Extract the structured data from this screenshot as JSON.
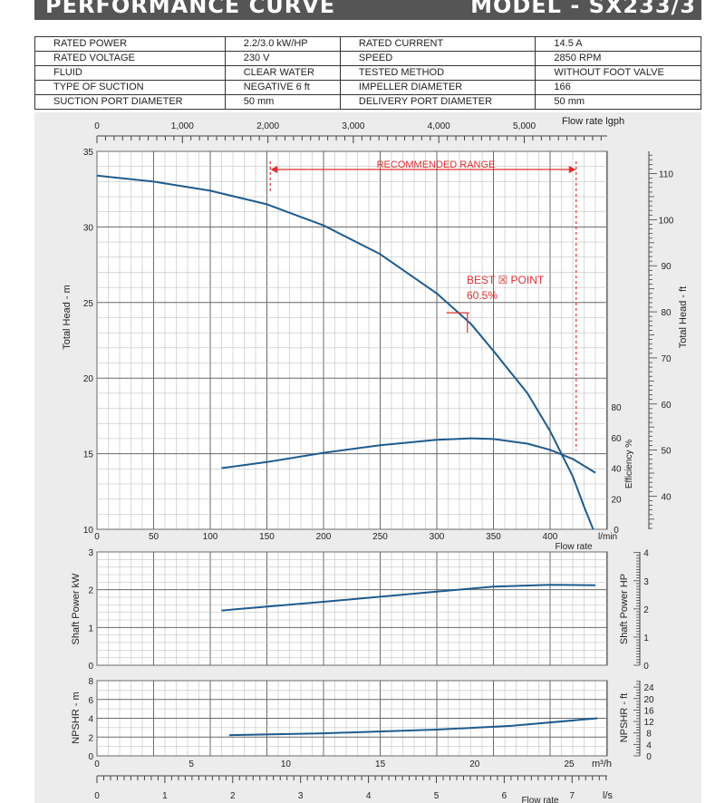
{
  "header": {
    "title": "PERFORMANCE  CURVE",
    "model": "MODEL - SX233/3"
  },
  "specs": [
    [
      "RATED POWER",
      "2.2/3.0  kW/HP",
      "RATED CURRENT",
      "14.5  A"
    ],
    [
      "RATED VOLTAGE",
      "230 V",
      "SPEED",
      "2850 RPM"
    ],
    [
      "FLUID",
      "CLEAR WATER",
      "TESTED  METHOD",
      "WITHOUT FOOT VALVE"
    ],
    [
      "TYPE OF SUCTION",
      "NEGATIVE  6 ft",
      "IMPELLER DIAMETER",
      "166"
    ],
    [
      "SUCTION PORT DIAMETER",
      "50 mm",
      "DELIVERY PORT DIAMETER",
      "50 mm"
    ]
  ],
  "colors": {
    "curve": "#1f5b8e",
    "annotation": "#e03030",
    "grid": "#8a8a8a",
    "panel": "#ececec",
    "banner": "#555555"
  },
  "chart_data": [
    {
      "type": "line",
      "name": "head-efficiency",
      "x_unit": "l/min",
      "xlim": [
        0,
        450
      ],
      "ylabel": "Total Head - m",
      "ylim": [
        10,
        35
      ],
      "y_right_label": "Total Head - ft",
      "y_right_ticks": [
        40,
        50,
        60,
        70,
        80,
        90,
        100,
        110
      ],
      "efficiency_label": "Efficiency %",
      "efficiency_ticks": [
        0,
        20,
        40,
        60,
        80
      ],
      "series": [
        {
          "name": "Total Head - m",
          "x": [
            0,
            50,
            100,
            150,
            200,
            250,
            300,
            330,
            350,
            380,
            400,
            420,
            430,
            438
          ],
          "y": [
            33.4,
            33.0,
            32.4,
            31.5,
            30.1,
            28.2,
            25.6,
            23.6,
            21.8,
            19.0,
            16.5,
            13.5,
            11.5,
            10.0
          ]
        },
        {
          "name": "Efficiency %",
          "x": [
            110,
            150,
            200,
            250,
            300,
            330,
            350,
            380,
            400,
            420,
            440
          ],
          "y": [
            40,
            44,
            50,
            55,
            58.5,
            59.5,
            59,
            56,
            52,
            46,
            37
          ]
        }
      ],
      "annotations": {
        "recommended_range": {
          "label": "RECOMMENDED RANGE",
          "x_from": 153,
          "x_to": 423
        },
        "best_point": {
          "label": "BEST ☒ POINT",
          "value": "60.5%",
          "x": 327,
          "y": 24.5
        }
      }
    },
    {
      "type": "line",
      "name": "shaft-power",
      "ylabel": "Shaft Power  kW",
      "ylim": [
        0,
        3
      ],
      "y_right_label": "Shaft Power  HP",
      "y_right_ticks": [
        0,
        1,
        2,
        3,
        4
      ],
      "series": [
        {
          "name": "Shaft Power  kW",
          "x": [
            110,
            200,
            300,
            350,
            400,
            440
          ],
          "y": [
            1.45,
            1.68,
            1.95,
            2.08,
            2.13,
            2.12
          ]
        }
      ]
    },
    {
      "type": "line",
      "name": "npshr",
      "ylabel": "NPSHR - m",
      "ylim": [
        0,
        8
      ],
      "y_right_label": "NPSHR - ft",
      "y_right_ticks": [
        0,
        4,
        8,
        12,
        16,
        20,
        24
      ],
      "series": [
        {
          "name": "NPSHR - m",
          "x": [
            7,
            12,
            18,
            22,
            26.5
          ],
          "y": [
            2.2,
            2.4,
            2.8,
            3.2,
            4.0
          ]
        }
      ]
    }
  ],
  "axes": {
    "lpm_ticks": [
      0,
      50,
      100,
      150,
      200,
      250,
      300,
      350,
      400
    ],
    "lpm_unit": "l/min",
    "flow_rate_label": "Flow rate",
    "lgph_label": "Flow rate  lgph",
    "lgph_ticks": [
      "0",
      "1,000",
      "2,000",
      "3,000",
      "4,000",
      "5,000"
    ],
    "lgph_values": [
      0,
      1000,
      2000,
      3000,
      4000,
      5000
    ],
    "head_ticks": [
      10,
      15,
      20,
      25,
      30,
      35
    ],
    "m3h_ticks": [
      0,
      5,
      10,
      15,
      20,
      25
    ],
    "m3h_unit": "m³/h",
    "ls_ticks": [
      0,
      1,
      2,
      3,
      4,
      5,
      6,
      7
    ],
    "ls_unit": "l/s"
  }
}
